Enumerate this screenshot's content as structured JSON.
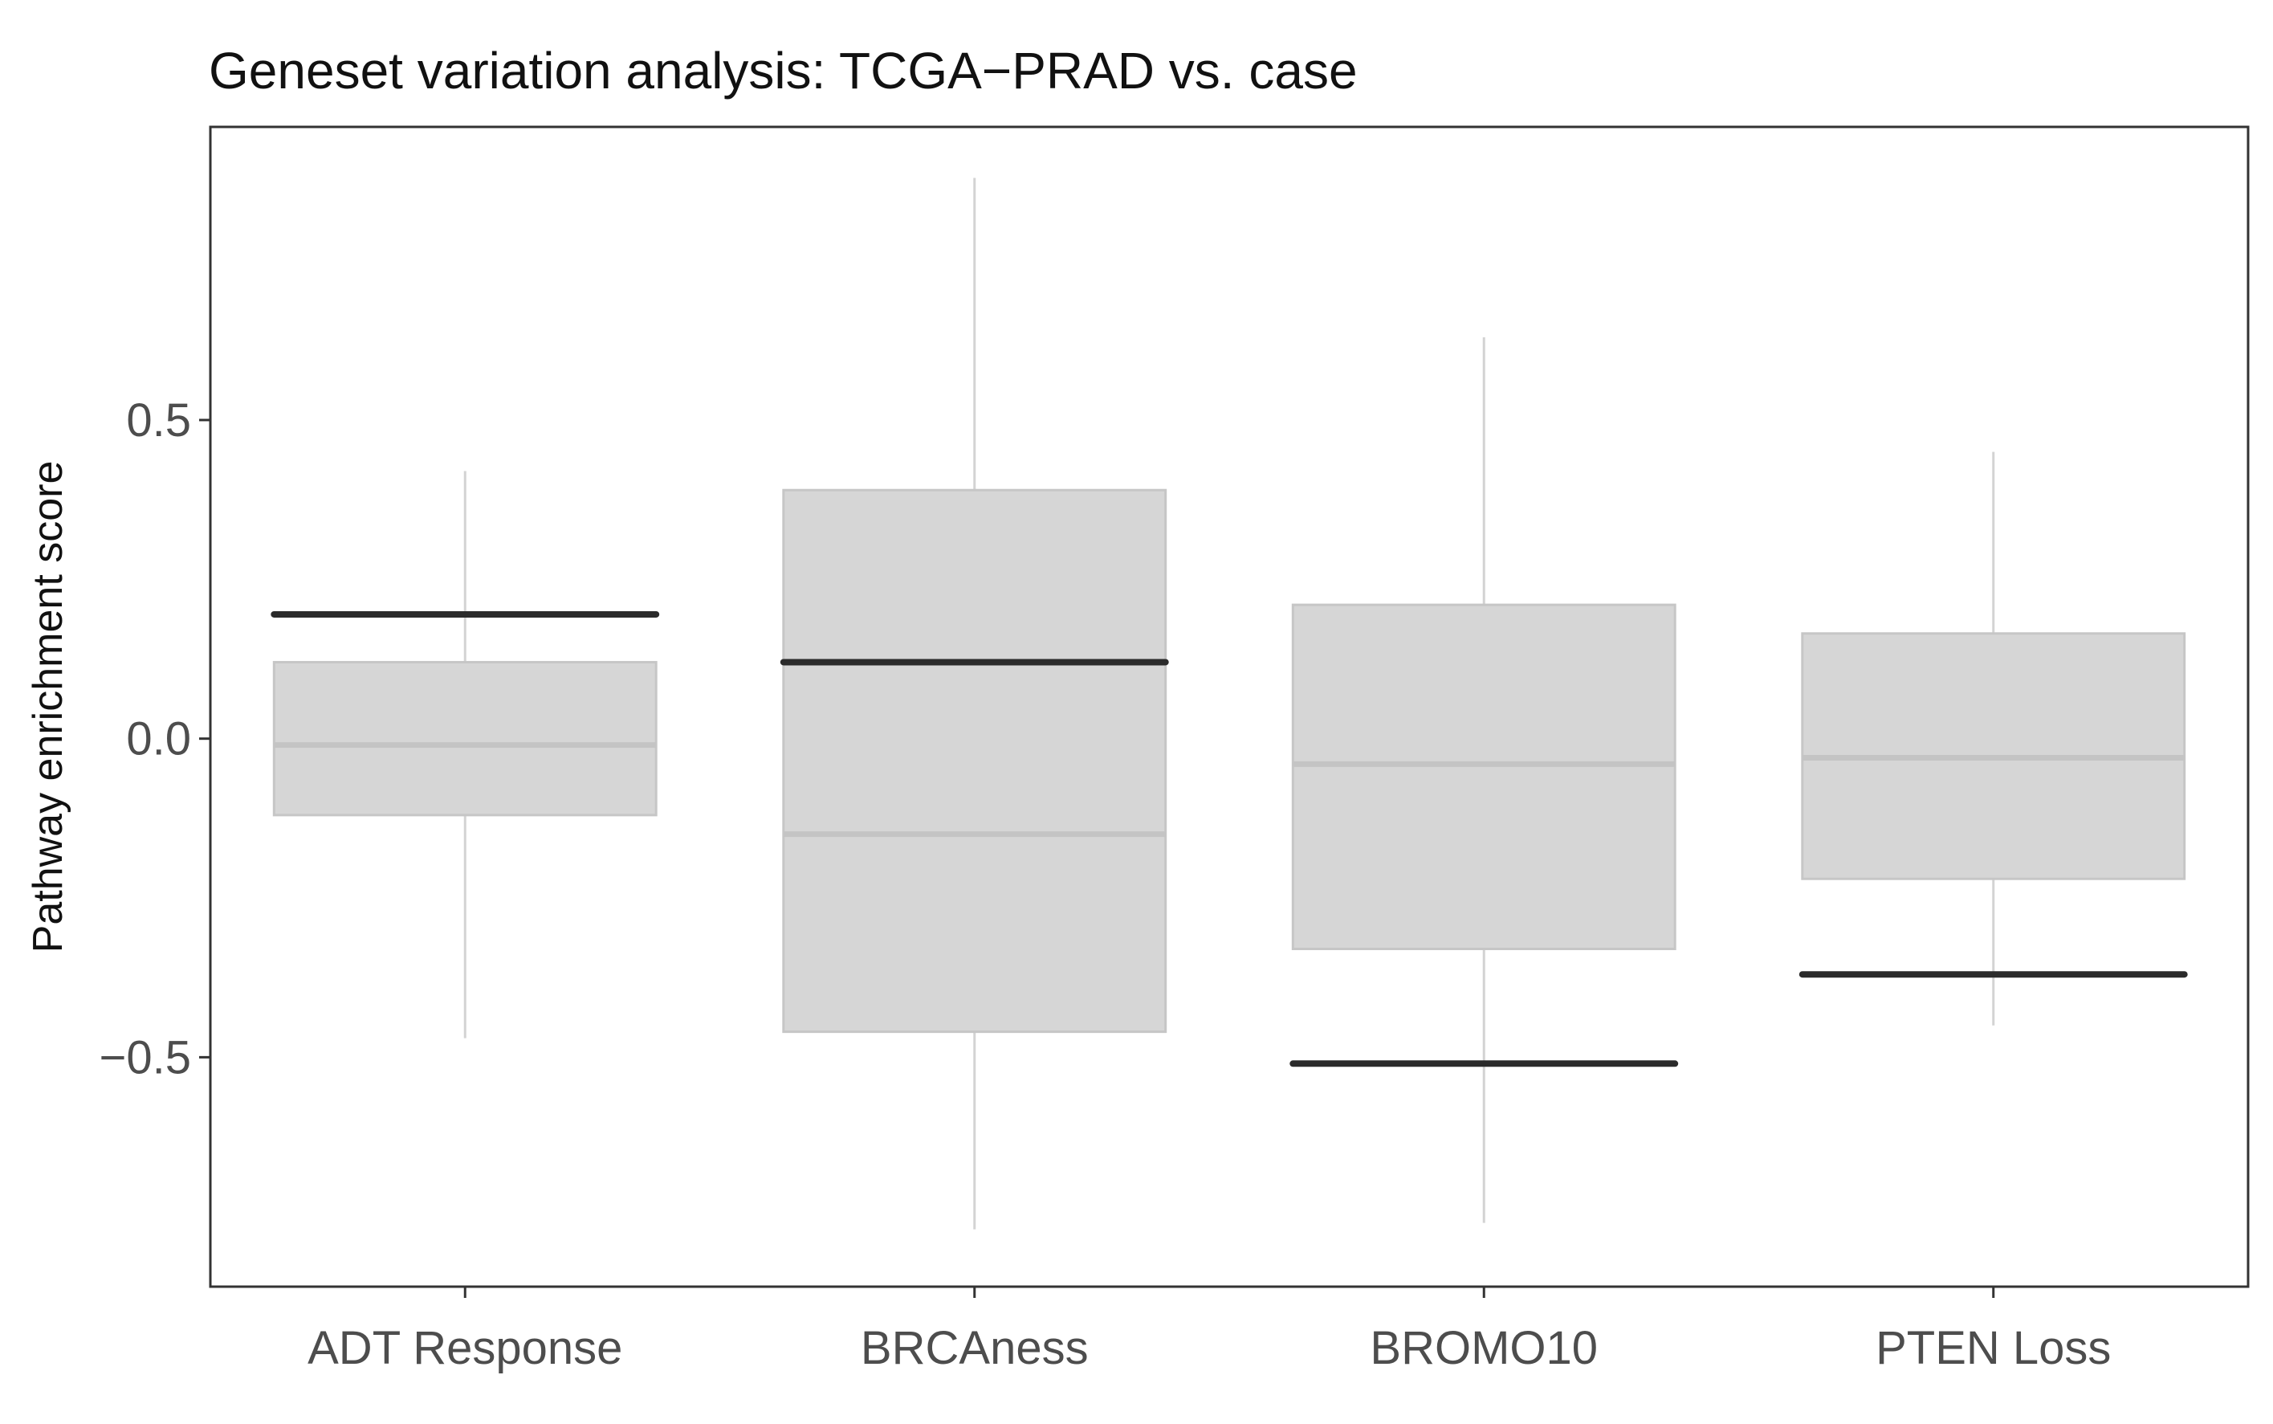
{
  "chart_data": {
    "type": "boxplot",
    "title": "Geneset variation analysis: TCGA−PRAD vs. case",
    "xlabel": "",
    "ylabel": "Pathway enrichment score",
    "ylim": [
      -0.86,
      0.96
    ],
    "yticks": [
      {
        "value": 0.5,
        "label": "0.5"
      },
      {
        "value": 0.0,
        "label": "0.0"
      },
      {
        "value": -0.5,
        "label": "−0.5"
      }
    ],
    "grid": false,
    "categories": [
      "ADT Response",
      "BRCAness",
      "BROMO10",
      "PTEN Loss"
    ],
    "boxes": [
      {
        "category": "ADT Response",
        "whisker_low": -0.47,
        "q1": -0.12,
        "median": -0.01,
        "q3": 0.12,
        "whisker_high": 0.42,
        "case_value": 0.195
      },
      {
        "category": "BRCAness",
        "whisker_low": -0.77,
        "q1": -0.46,
        "median": -0.15,
        "q3": 0.39,
        "whisker_high": 0.88,
        "case_value": 0.12
      },
      {
        "category": "BROMO10",
        "whisker_low": -0.76,
        "q1": -0.33,
        "median": -0.04,
        "q3": 0.21,
        "whisker_high": 0.63,
        "case_value": -0.51
      },
      {
        "category": "PTEN Loss",
        "whisker_low": -0.45,
        "q1": -0.22,
        "median": -0.03,
        "q3": 0.165,
        "whisker_high": 0.45,
        "case_value": -0.37
      }
    ],
    "colors": {
      "box_fill": "#d6d6d6",
      "box_stroke": "#c6c6c6",
      "median": "#c4c4c4",
      "whisker": "#d3d3d3",
      "case_line": "#2b2b2b",
      "frame": "#333333",
      "tick": "#333333"
    }
  }
}
